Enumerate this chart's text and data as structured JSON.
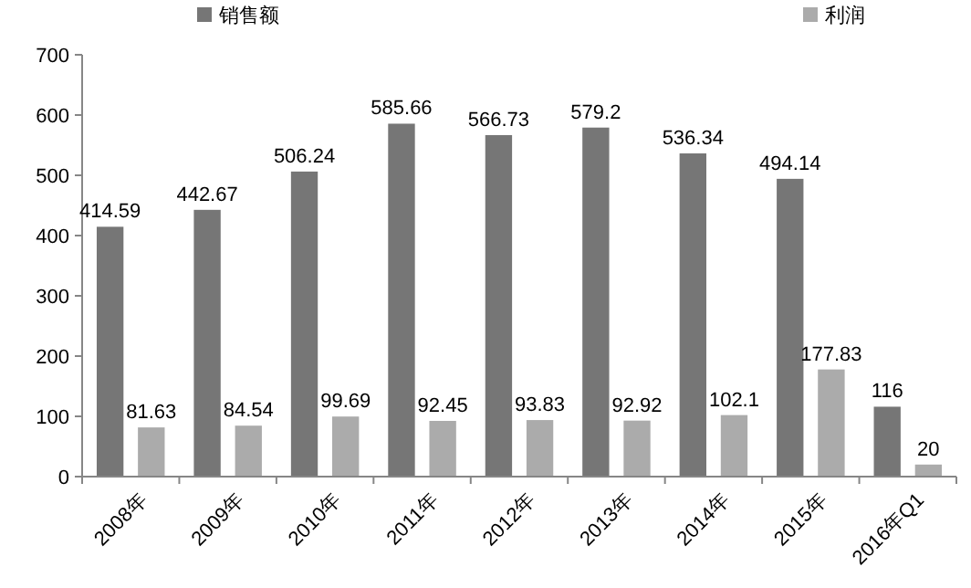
{
  "chart_data": {
    "type": "bar",
    "categories": [
      "2008年",
      "2009年",
      "2010年",
      "2011年",
      "2012年",
      "2013年",
      "2014年",
      "2015年",
      "2016年Q1"
    ],
    "series": [
      {
        "name": "销售额",
        "color": "#767676",
        "values": [
          414.59,
          442.67,
          506.24,
          585.66,
          566.73,
          579.2,
          536.34,
          494.14,
          116
        ]
      },
      {
        "name": "利润",
        "color": "#ababab",
        "values": [
          81.63,
          84.54,
          99.69,
          92.45,
          93.83,
          92.92,
          102.1,
          177.83,
          20
        ]
      }
    ],
    "ylim": [
      0,
      700
    ],
    "yticks": [
      0,
      100,
      200,
      300,
      400,
      500,
      600,
      700
    ],
    "data_labels": true,
    "legend": "top",
    "grid": false
  }
}
